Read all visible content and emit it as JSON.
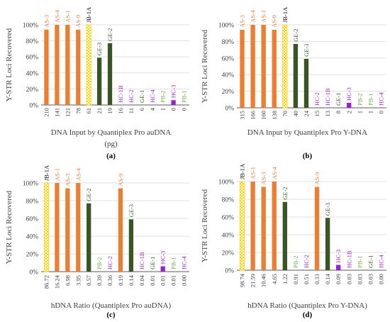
{
  "colors": {
    "AS": "#ED7D31",
    "JB": "#FFD400",
    "GE": "#375623",
    "HC": "#9A1ED2",
    "PB": "#70AD47",
    "grid": "#D9D9D9",
    "axis": "#595959",
    "text": "#404040"
  },
  "chart_data": [
    {
      "type": "bar",
      "panel_label": "(a)",
      "xlabel": "DNA Input by Quantiplex Pro auDNA (pg)",
      "ylabel": "Y-STR Loci Recovered",
      "ylim": [
        0,
        100
      ],
      "y_ticks": [
        "0%",
        "20%",
        "40%",
        "60%",
        "80%",
        "100%"
      ],
      "grid": true,
      "categories": [
        "AS-3",
        "AS-4",
        "AS-1",
        "AS-9",
        "JB-1A",
        "GE-3",
        "GE-2",
        "HC-1B",
        "HC-2",
        "GE-1",
        "HC-4",
        "PB-2",
        "HC-3",
        "PB-1"
      ],
      "values": [
        94,
        100,
        100,
        94,
        100,
        59,
        77,
        0,
        0,
        0,
        0,
        0,
        6,
        0
      ],
      "inputs": [
        "210",
        "141",
        "121",
        "78",
        "61",
        "21",
        "19",
        "16",
        "11",
        "6",
        "4",
        "1",
        "0",
        "0"
      ]
    },
    {
      "type": "bar",
      "panel_label": "(b)",
      "xlabel": "DNA Input by Quantiplex Pro Y-DNA",
      "ylabel": "Y-STR Loci Recovered",
      "ylim": [
        0,
        100
      ],
      "y_ticks": [
        "0%",
        "20%",
        "40%",
        "60%",
        "80%",
        "100%"
      ],
      "grid": true,
      "categories": [
        "AS-3",
        "AS-4",
        "AS-1",
        "AS-9",
        "JB-1A",
        "GE-2",
        "GE-3",
        "HC-2",
        "HC-1B",
        "GE-1",
        "HC-3",
        "PB-2",
        "PB-1",
        "HC-4"
      ],
      "values": [
        94,
        100,
        100,
        94,
        100,
        77,
        59,
        0,
        0,
        0,
        6,
        0,
        0,
        0
      ],
      "inputs": [
        "315",
        "166",
        "160",
        "138",
        "70",
        "40",
        "24",
        "15",
        "13",
        "8",
        "2",
        "1",
        "1",
        "0"
      ]
    },
    {
      "type": "bar",
      "panel_label": "(c)",
      "xlabel": "hDNA Ratio (Quantiplex Pro auDNA)",
      "ylabel": "Y-STR Loci Recovered",
      "ylim": [
        0,
        100
      ],
      "y_ticks": [
        "0%",
        "20%",
        "40%",
        "60%",
        "80%",
        "100%"
      ],
      "grid": true,
      "categories": [
        "JB-1A",
        "AS-1",
        "AS-3",
        "AS-4",
        "GE-2",
        "PB-2",
        "HC-2",
        "AS-9",
        "GE-3",
        "HC-1B",
        "GE-1",
        "HC-3",
        "PB-1",
        "HC-4"
      ],
      "values": [
        100,
        100,
        94,
        100,
        77,
        0,
        0,
        94,
        59,
        0,
        0,
        6,
        0,
        0
      ],
      "inputs": [
        "86.72",
        "16.24",
        "6.98",
        "3.95",
        "0.57",
        "0.39",
        "0.36",
        "0.19",
        "0.14",
        "0.04",
        "0.01",
        "0.01",
        "0.01",
        "0.00"
      ]
    },
    {
      "type": "bar",
      "panel_label": "(d)",
      "xlabel": "hDNA Ratio (Quantiplex Pro Y-DNA)",
      "ylabel": "Y-STR Loci Recovered",
      "ylim": [
        0,
        100
      ],
      "y_ticks": [
        "0%",
        "20%",
        "40%",
        "60%",
        "80%",
        "100%"
      ],
      "grid": true,
      "categories": [
        "JB-1A",
        "AS-1",
        "AS-3",
        "AS-4",
        "GE-2",
        "PB-2",
        "HC-2",
        "AS-9",
        "GE-3",
        "HC-3",
        "HC-1B",
        "PB-1",
        "GE-1",
        "HC-4"
      ],
      "values": [
        100,
        100,
        94,
        100,
        77,
        0,
        0,
        94,
        59,
        6,
        0,
        0,
        0,
        0
      ],
      "inputs": [
        "98.74",
        "21.59",
        "10.46",
        "4.65",
        "1.22",
        "0.91",
        "0.51",
        "0.33",
        "0.14",
        "0.09",
        "0.03",
        "0.03",
        "0.03",
        "0.00"
      ]
    }
  ]
}
